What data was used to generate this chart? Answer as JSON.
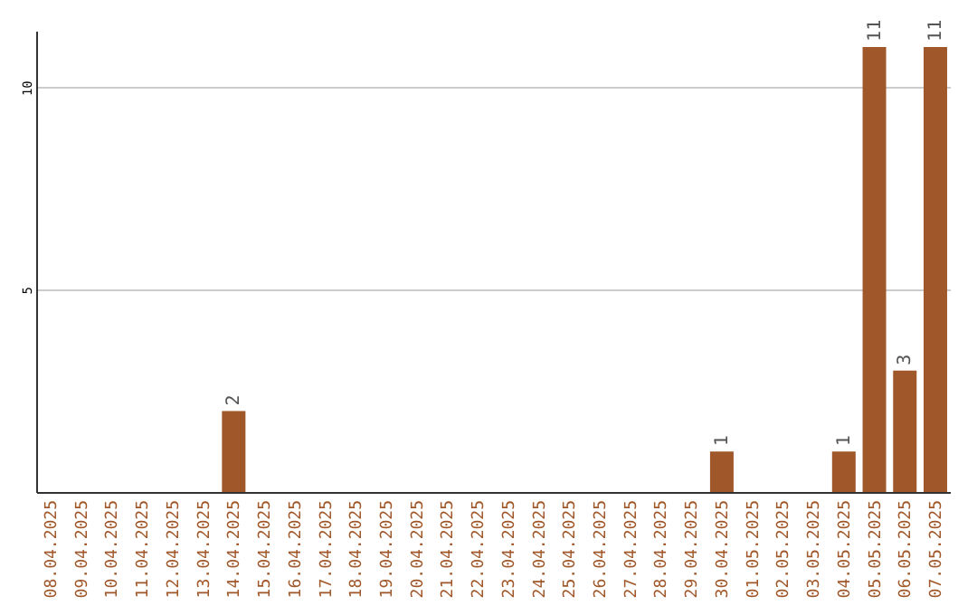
{
  "chart_data": {
    "type": "bar",
    "categories": [
      "08.04.2025",
      "09.04.2025",
      "10.04.2025",
      "11.04.2025",
      "12.04.2025",
      "13.04.2025",
      "14.04.2025",
      "15.04.2025",
      "16.04.2025",
      "17.04.2025",
      "18.04.2025",
      "19.04.2025",
      "20.04.2025",
      "21.04.2025",
      "22.04.2025",
      "23.04.2025",
      "24.04.2025",
      "25.04.2025",
      "26.04.2025",
      "27.04.2025",
      "28.04.2025",
      "29.04.2025",
      "30.04.2025",
      "01.05.2025",
      "02.05.2025",
      "03.05.2025",
      "04.05.2025",
      "05.05.2025",
      "06.05.2025",
      "07.05.2025"
    ],
    "values": [
      0,
      0,
      0,
      0,
      0,
      0,
      2,
      0,
      0,
      0,
      0,
      0,
      0,
      0,
      0,
      0,
      0,
      0,
      0,
      0,
      0,
      0,
      1,
      0,
      0,
      0,
      1,
      11,
      3,
      11
    ],
    "value_labels": [
      null,
      null,
      null,
      null,
      null,
      null,
      "2",
      null,
      null,
      null,
      null,
      null,
      null,
      null,
      null,
      null,
      null,
      null,
      null,
      null,
      null,
      null,
      "1",
      null,
      null,
      null,
      "1",
      "11",
      "3",
      "11"
    ],
    "color": "#a0582a",
    "ylim": [
      0,
      11.4
    ],
    "yticks": [
      5,
      10
    ],
    "grid": "y"
  }
}
